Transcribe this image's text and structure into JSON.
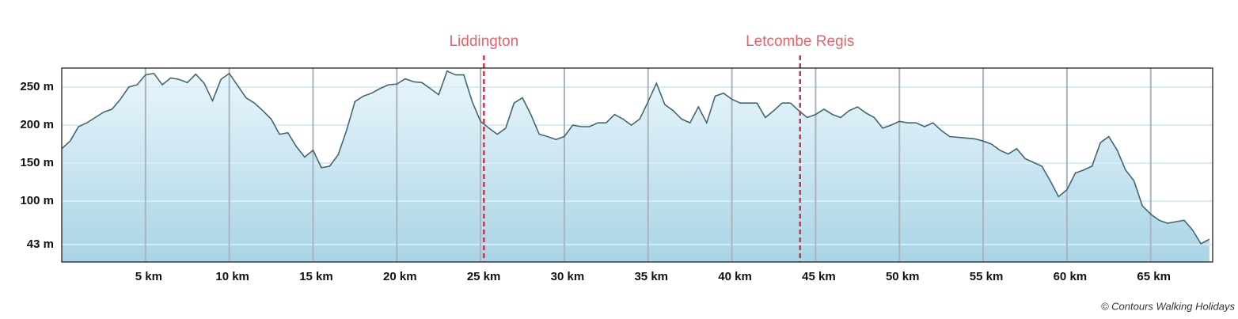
{
  "chart_data": {
    "type": "area",
    "x": [
      0,
      0.5,
      1,
      1.5,
      2,
      2.5,
      3,
      3.5,
      4,
      4.5,
      5,
      5.5,
      6,
      6.5,
      7,
      7.5,
      8,
      8.5,
      9,
      9.5,
      10,
      10.5,
      11,
      11.5,
      12,
      12.5,
      13,
      13.5,
      14,
      14.5,
      15,
      15.5,
      16,
      16.5,
      17,
      17.5,
      18,
      18.5,
      19,
      19.5,
      20,
      20.5,
      21,
      21.5,
      22,
      22.5,
      23,
      23.5,
      24,
      24.5,
      25,
      25.5,
      26,
      26.5,
      27,
      27.5,
      28,
      28.5,
      29,
      29.5,
      30,
      30.5,
      31,
      31.5,
      32,
      32.5,
      33,
      33.5,
      34,
      34.5,
      35,
      35.5,
      36,
      36.5,
      37,
      37.5,
      38,
      38.5,
      39,
      39.5,
      40,
      40.5,
      41,
      41.5,
      42,
      42.5,
      43,
      43.5,
      44,
      44.5,
      45,
      45.5,
      46,
      46.5,
      47,
      47.5,
      48,
      48.5,
      49,
      49.5,
      50,
      50.5,
      51,
      51.5,
      52,
      52.5,
      53,
      53.5,
      54,
      54.5,
      55,
      55.5,
      56,
      56.5,
      57,
      57.5,
      58,
      58.5,
      59,
      59.5,
      60,
      60.5,
      61,
      61.5,
      62,
      62.5,
      63,
      63.5,
      64,
      64.5,
      65,
      65.5,
      66,
      66.5,
      67,
      67.5,
      68,
      68.5
    ],
    "values": [
      169,
      179,
      198,
      203,
      210,
      217,
      221,
      234,
      250,
      253,
      266,
      268,
      253,
      262,
      260,
      256,
      267,
      255,
      232,
      260,
      268,
      252,
      236,
      229,
      219,
      208,
      188,
      190,
      172,
      158,
      167,
      144,
      146,
      161,
      193,
      231,
      238,
      242,
      248,
      253,
      254,
      261,
      257,
      256,
      248,
      240,
      271,
      266,
      266,
      231,
      205,
      196,
      188,
      196,
      229,
      236,
      214,
      188,
      185,
      181,
      185,
      200,
      198,
      198,
      203,
      203,
      214,
      208,
      200,
      208,
      231,
      255,
      227,
      219,
      208,
      203,
      224,
      203,
      238,
      242,
      234,
      229,
      229,
      229,
      210,
      219,
      229,
      229,
      219,
      210,
      214,
      221,
      214,
      210,
      219,
      224,
      216,
      210,
      196,
      200,
      205,
      203,
      203,
      198,
      203,
      193,
      185,
      184,
      183,
      182,
      179,
      175,
      167,
      162,
      169,
      156,
      151,
      146,
      127,
      106,
      115,
      137,
      141,
      146,
      177,
      185,
      167,
      141,
      127,
      94,
      83,
      75,
      71,
      73,
      75,
      62,
      44,
      50
    ],
    "color": "#3f6874",
    "xlim": [
      0,
      68.7
    ],
    "ylim": [
      20,
      275
    ],
    "xticks": [
      {
        "value": 5,
        "label": "5 km"
      },
      {
        "value": 10,
        "label": "10 km"
      },
      {
        "value": 15,
        "label": "15 km"
      },
      {
        "value": 20,
        "label": "20 km"
      },
      {
        "value": 25,
        "label": "25 km"
      },
      {
        "value": 30,
        "label": "30 km"
      },
      {
        "value": 35,
        "label": "35 km"
      },
      {
        "value": 40,
        "label": "40 km"
      },
      {
        "value": 45,
        "label": "45 km"
      },
      {
        "value": 50,
        "label": "50 km"
      },
      {
        "value": 55,
        "label": "55 km"
      },
      {
        "value": 60,
        "label": "60 km"
      },
      {
        "value": 65,
        "label": "65 km"
      }
    ],
    "yticks": [
      {
        "value": 43,
        "label": "43 m"
      },
      {
        "value": 100,
        "label": "100 m"
      },
      {
        "value": 150,
        "label": "150 m"
      },
      {
        "value": 200,
        "label": "200 m"
      },
      {
        "value": 250,
        "label": "250 m"
      }
    ],
    "markers": [
      {
        "label": "Liddington",
        "x": 25.2
      },
      {
        "label": "Letcombe Regis",
        "x": 44.07
      }
    ],
    "grid": true,
    "credit": "© Contours Walking Holidays"
  }
}
